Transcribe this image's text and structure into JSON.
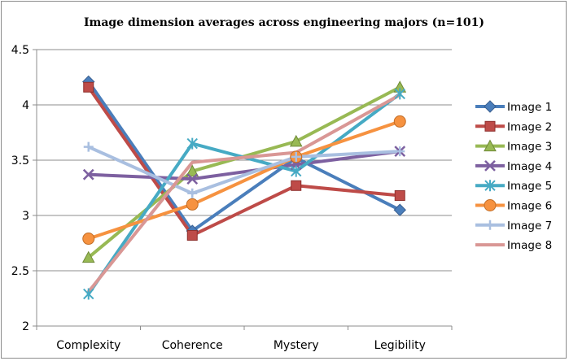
{
  "chart_data": {
    "type": "line",
    "title": "Image dimension averages across engineering majors (n=101)",
    "categories": [
      "Complexity",
      "Coherence",
      "Mystery",
      "Legibility"
    ],
    "ylim": [
      2,
      4.5
    ],
    "yticks": [
      "2",
      "2.5",
      "3",
      "3.5",
      "4",
      "4.5"
    ],
    "ytick_values": [
      2,
      2.5,
      3,
      3.5,
      4,
      4.5
    ],
    "grid": "horizontal",
    "legend": "right",
    "series": [
      {
        "name": "Image 1",
        "color": "#4a7ebb",
        "marker": "diamond",
        "values": [
          4.21,
          2.86,
          3.52,
          3.05
        ]
      },
      {
        "name": "Image 2",
        "color": "#be4b48",
        "marker": "square",
        "values": [
          4.16,
          2.82,
          3.27,
          3.18
        ]
      },
      {
        "name": "Image 3",
        "color": "#98b954",
        "marker": "triangle",
        "values": [
          2.62,
          3.4,
          3.67,
          4.16
        ]
      },
      {
        "name": "Image 4",
        "color": "#7d60a0",
        "marker": "x",
        "values": [
          3.37,
          3.33,
          3.46,
          3.58
        ]
      },
      {
        "name": "Image 5",
        "color": "#46aac4",
        "marker": "star",
        "values": [
          2.29,
          3.65,
          3.4,
          4.1
        ]
      },
      {
        "name": "Image 6",
        "color": "#f69240",
        "marker": "circle",
        "values": [
          2.79,
          3.1,
          3.53,
          3.85
        ]
      },
      {
        "name": "Image 7",
        "color": "#a9bfe0",
        "marker": "plus",
        "values": [
          3.62,
          3.2,
          3.53,
          3.58
        ]
      },
      {
        "name": "Image 8",
        "color": "#d99795",
        "marker": "none",
        "values": [
          2.31,
          3.48,
          3.57,
          4.09
        ]
      }
    ]
  }
}
